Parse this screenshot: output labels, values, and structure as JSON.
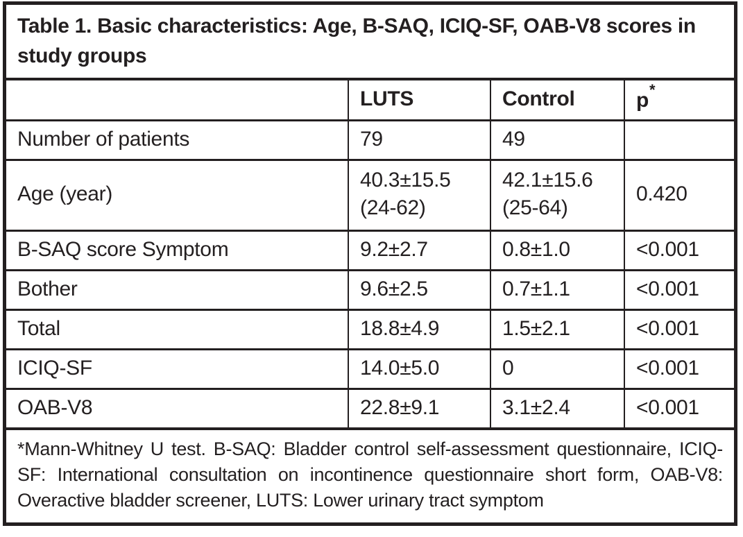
{
  "table": {
    "title": "Table 1. Basic characteristics: Age, B-SAQ, ICIQ-SF, OAB-V8 scores in study groups",
    "header": {
      "blank": "",
      "luts": "LUTS",
      "control": "Control",
      "p": "p",
      "p_sup": "*"
    },
    "rows": [
      {
        "label": "Number of patients",
        "luts": "79",
        "control": "49",
        "p": ""
      },
      {
        "label": "Age (year)",
        "luts": "40.3±15.5\n(24-62)",
        "control": "42.1±15.6\n(25-64)",
        "p": "0.420"
      },
      {
        "label": "B-SAQ score Symptom",
        "luts": "9.2±2.7",
        "control": "0.8±1.0",
        "p": "<0.001"
      },
      {
        "label": "Bother",
        "luts": "9.6±2.5",
        "control": "0.7±1.1",
        "p": "<0.001"
      },
      {
        "label": "Total",
        "luts": "18.8±4.9",
        "control": "1.5±2.1",
        "p": "<0.001"
      },
      {
        "label": "ICIQ-SF",
        "luts": "14.0±5.0",
        "control": "0",
        "p": "<0.001"
      },
      {
        "label": "OAB-V8",
        "luts": "22.8±9.1",
        "control": "3.1±2.4",
        "p": "<0.001"
      }
    ],
    "footnote": "*Mann-Whitney U test. B-SAQ: Bladder control self-assessment questionnaire, ICIQ-SF: International consultation on incontinence questionnaire short form, OAB-V8: Overactive bladder screener, LUTS: Lower urinary tract symptom",
    "colors": {
      "text": "#231f20",
      "border": "#231f20",
      "background": "#ffffff"
    }
  }
}
